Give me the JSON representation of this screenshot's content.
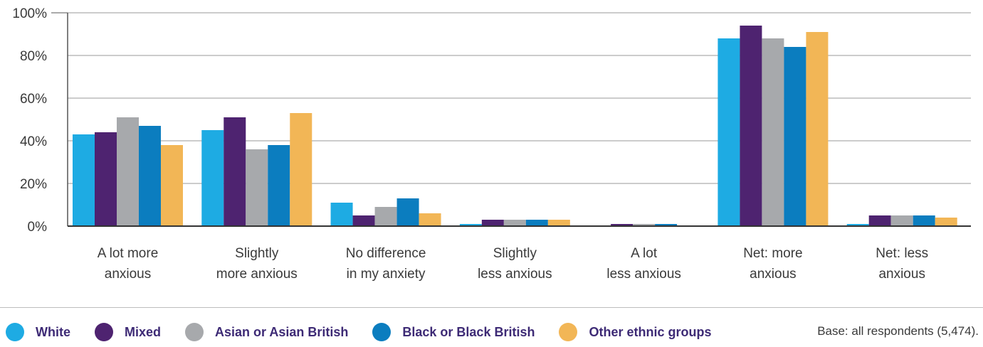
{
  "chart_data": {
    "type": "bar",
    "categories": [
      [
        "A lot more",
        "anxious"
      ],
      [
        "Slightly",
        "more anxious"
      ],
      [
        "No difference",
        "in my anxiety"
      ],
      [
        "Slightly",
        "less anxious"
      ],
      [
        "A lot",
        "less anxious"
      ],
      [
        "Net: more",
        "anxious"
      ],
      [
        "Net: less",
        "anxious"
      ]
    ],
    "series": [
      {
        "name": "White",
        "color": "#1eabe3",
        "values": [
          43,
          45,
          11,
          1,
          0,
          88,
          1
        ]
      },
      {
        "name": "Mixed",
        "color": "#4e2370",
        "values": [
          44,
          51,
          5,
          3,
          1,
          94,
          5
        ]
      },
      {
        "name": "Asian or Asian British",
        "color": "#a7a9ac",
        "values": [
          51,
          36,
          9,
          3,
          1,
          88,
          5
        ]
      },
      {
        "name": "Black or Black British",
        "color": "#0b7dbf",
        "values": [
          47,
          38,
          13,
          3,
          1,
          84,
          5
        ]
      },
      {
        "name": "Other ethnic groups",
        "color": "#f2b656",
        "values": [
          38,
          53,
          6,
          3,
          0,
          91,
          4
        ]
      }
    ],
    "yticks": [
      "0%",
      "20%",
      "40%",
      "60%",
      "80%",
      "100%"
    ],
    "ylim": [
      0,
      100
    ],
    "grid": true,
    "legend_position": "bottom",
    "title": "",
    "xlabel": "",
    "ylabel": ""
  },
  "footnote": "Base: all respondents (5,474)."
}
